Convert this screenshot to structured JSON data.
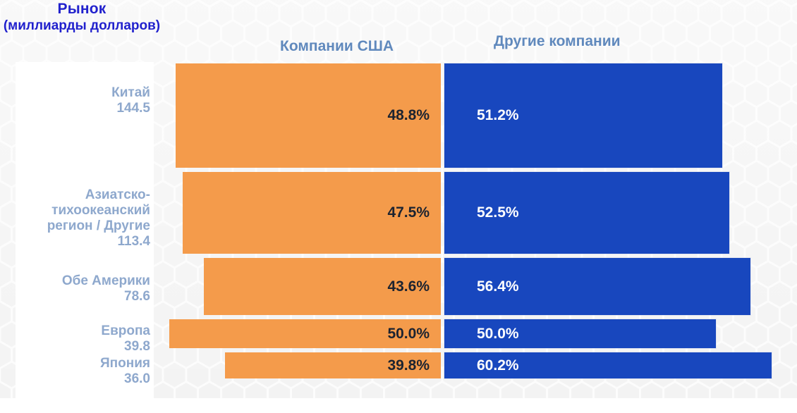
{
  "title": {
    "text": "Рынок",
    "subtitle": "(миллиарды долларов)",
    "color": "#2121CD"
  },
  "headers": {
    "left": "Компании США",
    "right": "Другие компании",
    "color": "#6089BD"
  },
  "chart_data": {
    "type": "bar",
    "orientation": "horizontal-diverging",
    "unit": "%",
    "title": "Рынок",
    "subtitle": "(миллиарды долларов)",
    "legend_position": "top",
    "grid": false,
    "categories": [
      {
        "name": "Китай",
        "name_lines": [
          "Китай"
        ],
        "value": 144.5
      },
      {
        "name": "Азиатско-тихоокеанский регион / Другие",
        "name_lines": [
          "Азиатско-",
          "тихоокеанский",
          "регион / Другие"
        ],
        "value": 113.4
      },
      {
        "name": "Обе Америки",
        "name_lines": [
          "Обе Америки"
        ],
        "value": 78.6
      },
      {
        "name": "Европа",
        "name_lines": [
          "Европа"
        ],
        "value": 39.8
      },
      {
        "name": "Япония",
        "name_lines": [
          "Япония"
        ],
        "value": 36.0
      }
    ],
    "series": [
      {
        "name": "Компании США",
        "side": "left",
        "color": "#F49B4B",
        "values": [
          48.8,
          47.5,
          43.6,
          50.0,
          39.8
        ]
      },
      {
        "name": "Другие компании",
        "side": "right",
        "color": "#1847BE",
        "values": [
          51.2,
          52.5,
          56.4,
          50.0,
          60.2
        ]
      }
    ],
    "value_note": "высота строки пропорциональна размеру рынка (миллиарды долларов)",
    "colors": {
      "us_bar": "#F49B4B",
      "other_bar": "#1847BE",
      "us_value_text": "#1C2330",
      "other_value_text": "#FFFFFF",
      "category_label": "#8EA8CD"
    }
  }
}
